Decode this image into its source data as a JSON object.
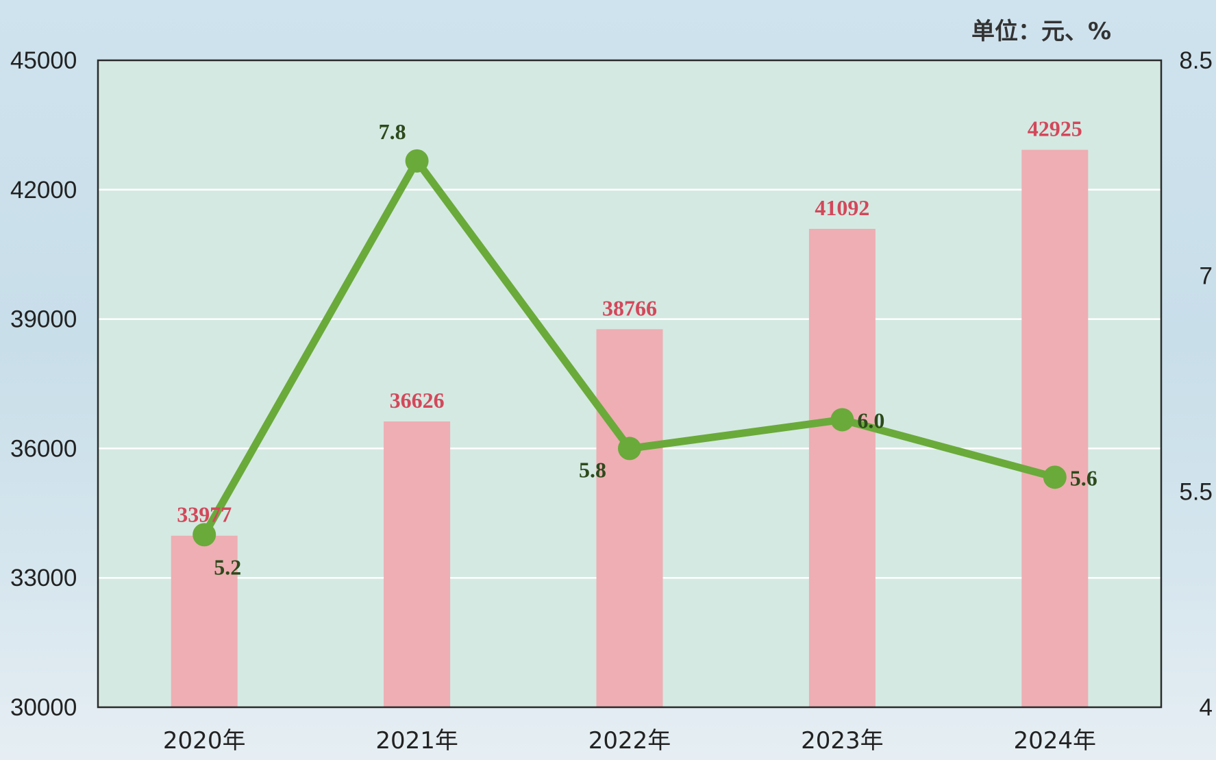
{
  "unit_label": "单位：元、%",
  "chart_data": {
    "type": "bar",
    "categories": [
      "2020年",
      "2021年",
      "2022年",
      "2023年",
      "2024年"
    ],
    "series": [
      {
        "type": "bar",
        "axis": "left",
        "values": [
          33977,
          36626,
          38766,
          41092,
          42925
        ],
        "labels": [
          "33977",
          "36626",
          "38766",
          "41092",
          "42925"
        ],
        "color": "#eeaeb3"
      },
      {
        "type": "line",
        "axis": "right",
        "values": [
          5.2,
          7.8,
          5.8,
          6.0,
          5.6
        ],
        "labels": [
          "5.2",
          "7.8",
          "5.8",
          "6.0",
          "5.6"
        ],
        "color": "#6aaa3a"
      }
    ],
    "y_left": {
      "ylim": [
        30000,
        45000
      ],
      "ticks": [
        "45000",
        "42000",
        "39000",
        "36000",
        "33000",
        "30000"
      ]
    },
    "y_right": {
      "ylim": [
        4,
        8.5
      ],
      "ticks": [
        "8.5",
        "7",
        "5.5",
        "4"
      ]
    },
    "grid": true,
    "plot_background": "#d4e9e2",
    "bar_label_color": "#d4475a",
    "line_label_color": "#2d4a1c"
  }
}
